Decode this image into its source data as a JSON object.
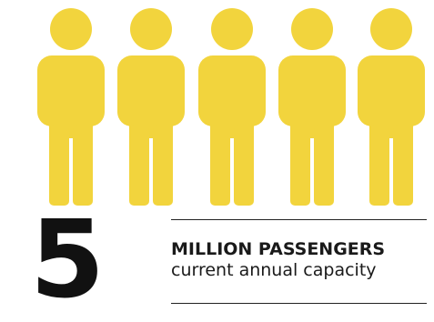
{
  "infographic": {
    "people_count": 5,
    "icon_name": "person-icon",
    "icon_color": "#f2d43d",
    "number": "5",
    "headline": "MILLION PASSENGERS",
    "subline": "current annual capacity"
  }
}
